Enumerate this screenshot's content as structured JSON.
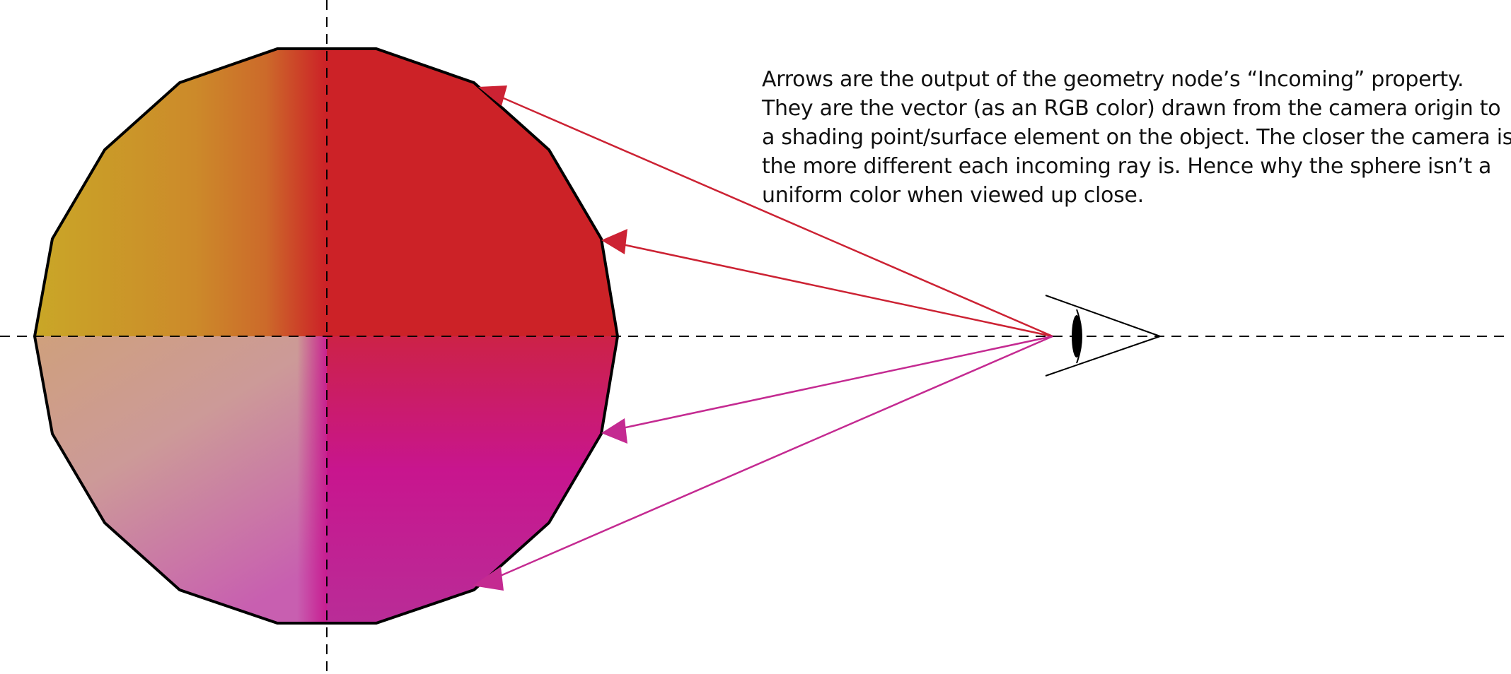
{
  "description_lines": [
    "Arrows are the output of the geometry node’s “Incoming”  property.",
    "They are the vector (as an RGB color) drawn from the camera origin to",
    " a shading point/surface element on the object. The closer the camera is,",
    "the more different each incoming ray is. Hence why the sphere isn’t a",
    " uniform color when viewed up close."
  ],
  "colors": {
    "upper_left": "#c9a227",
    "upper_right": "#cc2227",
    "lower_right": "#c8158e",
    "lower_left_top": "#cfa88e",
    "lower_left_bottom": "#c85fb0",
    "ray_upper": "#cc2233",
    "ray_lower": "#c42a91",
    "outline": "#000000"
  }
}
